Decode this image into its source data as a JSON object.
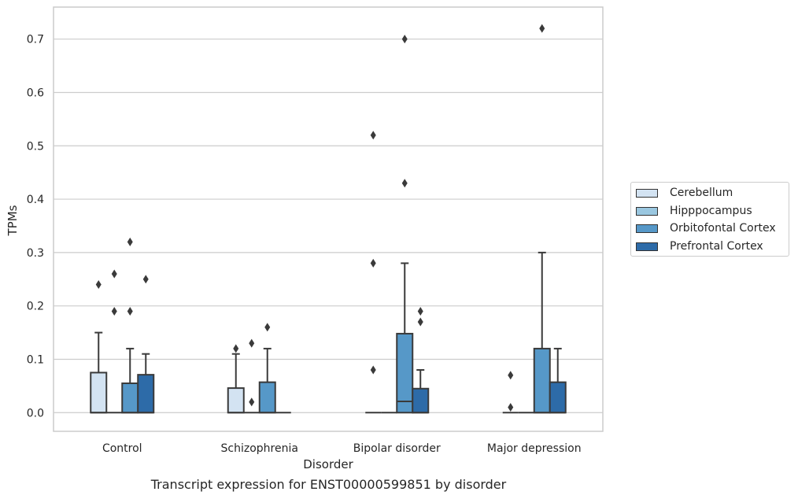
{
  "chart_data": {
    "type": "box",
    "caption": "Transcript expression for ENST00000599851 by disorder",
    "xlabel": "Disorder",
    "ylabel": "TPMs",
    "ylim": [
      -0.035,
      0.76
    ],
    "yticks": [
      "0.0",
      "0.1",
      "0.2",
      "0.3",
      "0.4",
      "0.5",
      "0.6",
      "0.7"
    ],
    "ytick_values": [
      0,
      0.1,
      0.2,
      0.3,
      0.4,
      0.5,
      0.6,
      0.7
    ],
    "grid": true,
    "legend_placement": "center-right outside",
    "categories": [
      "Control",
      "Schizophrenia",
      "Bipolar disorder",
      "Major depression"
    ],
    "series": [
      {
        "name": "Cerebellum",
        "color": "#d3e3f2",
        "boxes": [
          {
            "q1": 0,
            "median": 0,
            "q3": 0.075,
            "whislo": 0,
            "whishi": 0.15,
            "fliers": [
              0.24
            ]
          },
          {
            "q1": 0,
            "median": 0,
            "q3": 0.046,
            "whislo": 0,
            "whishi": 0.11,
            "fliers": [
              0.12
            ]
          },
          {
            "q1": 0,
            "median": 0,
            "q3": 0,
            "whislo": 0,
            "whishi": 0,
            "fliers": [
              0.08,
              0.28,
              0.52
            ]
          },
          {
            "q1": 0,
            "median": 0,
            "q3": 0,
            "whislo": 0,
            "whishi": 0,
            "fliers": [
              0.01,
              0.07
            ]
          }
        ]
      },
      {
        "name": "Hipppocampus",
        "color": "#9ac7e0",
        "boxes": [
          {
            "q1": 0,
            "median": 0,
            "q3": 0,
            "whislo": 0,
            "whishi": 0,
            "fliers": [
              0.19,
              0.26
            ]
          },
          {
            "q1": 0,
            "median": 0,
            "q3": 0,
            "whislo": 0,
            "whishi": 0,
            "fliers": [
              0.02,
              0.13
            ]
          },
          {
            "q1": 0,
            "median": 0,
            "q3": 0,
            "whislo": 0,
            "whishi": 0,
            "fliers": []
          },
          {
            "q1": 0,
            "median": 0,
            "q3": 0,
            "whislo": 0,
            "whishi": 0,
            "fliers": []
          }
        ]
      },
      {
        "name": "Orbitofontal Cortex",
        "color": "#5698c8",
        "boxes": [
          {
            "q1": 0,
            "median": 0,
            "q3": 0.055,
            "whislo": 0,
            "whishi": 0.12,
            "fliers": [
              0.19,
              0.32
            ]
          },
          {
            "q1": 0,
            "median": 0,
            "q3": 0.057,
            "whislo": 0,
            "whishi": 0.12,
            "fliers": [
              0.16
            ]
          },
          {
            "q1": 0,
            "median": 0.021,
            "q3": 0.148,
            "whislo": 0,
            "whishi": 0.28,
            "fliers": [
              0.43,
              0.7
            ]
          },
          {
            "q1": 0,
            "median": 0,
            "q3": 0.12,
            "whislo": 0,
            "whishi": 0.3,
            "fliers": [
              0.72
            ]
          }
        ]
      },
      {
        "name": "Prefrontal Cortex",
        "color": "#2d6ba8",
        "boxes": [
          {
            "q1": 0,
            "median": 0,
            "q3": 0.071,
            "whislo": 0,
            "whishi": 0.11,
            "fliers": [
              0.25
            ]
          },
          {
            "q1": 0,
            "median": 0,
            "q3": 0,
            "whislo": 0,
            "whishi": 0,
            "fliers": []
          },
          {
            "q1": 0,
            "median": 0,
            "q3": 0.045,
            "whislo": 0,
            "whishi": 0.08,
            "fliers": [
              0.17,
              0.19
            ]
          },
          {
            "q1": 0,
            "median": 0,
            "q3": 0.057,
            "whislo": 0,
            "whishi": 0.12,
            "fliers": []
          }
        ]
      }
    ]
  }
}
